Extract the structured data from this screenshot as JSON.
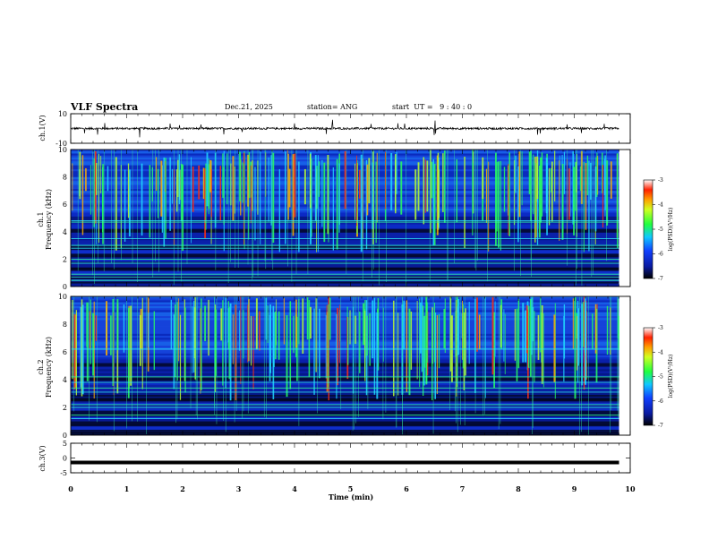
{
  "header": {
    "title": "VLF Spectra",
    "date": "Dec.21, 2025",
    "station": "station= ANG",
    "start": "start  UT =   9 : 40 : 0"
  },
  "chart_data": [
    {
      "type": "line",
      "name": "ch1-waveform",
      "ylabel": "ch.1(V)",
      "ylim": [
        -10,
        10
      ],
      "yticks": [
        "10",
        "-10"
      ],
      "baseline": 0,
      "description_values": "noisy waveform around 0 V with impulsive spikes"
    },
    {
      "type": "heatmap",
      "name": "ch1-spectrogram",
      "ylabel_line1": "ch.1",
      "ylabel_line2": "Frequency  (kHz)",
      "ylim": [
        0,
        10
      ],
      "yticks": [
        "0",
        "2",
        "4",
        "6",
        "8",
        "10"
      ],
      "colorbar": {
        "label": "log(PSD)(V²/Hz)",
        "ticks": [
          "-3",
          "-4",
          "-5",
          "-6",
          "-7"
        ],
        "range": [
          -7,
          -3
        ]
      }
    },
    {
      "type": "heatmap",
      "name": "ch2-spectrogram",
      "ylabel_line1": "ch.2",
      "ylabel_line2": "Frequency  (kHz)",
      "ylim": [
        0,
        10
      ],
      "yticks": [
        "0",
        "2",
        "4",
        "6",
        "8",
        "10"
      ],
      "colorbar": {
        "label": "log(PSD)(V²/Hz)",
        "ticks": [
          "-3",
          "-4",
          "-5",
          "-6",
          "-7"
        ],
        "range": [
          -7,
          -3
        ]
      }
    },
    {
      "type": "line",
      "name": "ch3-waveform",
      "ylabel": "ch.3(V)",
      "ylim": [
        -5,
        5
      ],
      "yticks": [
        "5",
        "0",
        "-5"
      ],
      "baseline": -1.5
    }
  ],
  "xaxis": {
    "label": "Time  (min)",
    "ticks": [
      "0",
      "1",
      "2",
      "3",
      "4",
      "5",
      "6",
      "7",
      "8",
      "9",
      "10"
    ],
    "range": [
      0,
      10
    ],
    "data_end": 9.8
  }
}
